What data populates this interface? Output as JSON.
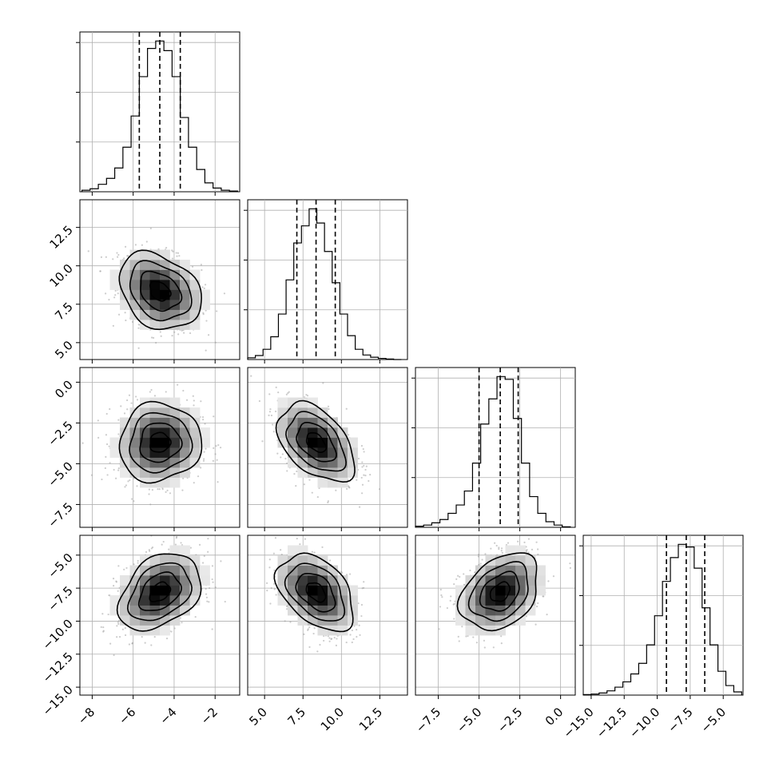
{
  "chart_data": {
    "type": "corner",
    "title": "",
    "grid": true,
    "colors": {
      "line": "#000000",
      "grid": "#b0b0b0",
      "points": "#9a9a9a",
      "background": "#ffffff"
    },
    "parameters": [
      {
        "range": [
          -8.6,
          -0.8
        ],
        "ticks": [
          "-8",
          "-6",
          "-4",
          "-2"
        ],
        "tick_values": [
          -8,
          -6,
          -4,
          -2
        ],
        "quantiles": [
          -5.7,
          -4.7,
          -3.7
        ]
      },
      {
        "range": [
          3.9,
          14.3
        ],
        "ticks": [
          "5.0",
          "7.5",
          "10.0",
          "12.5"
        ],
        "tick_values": [
          5.0,
          7.5,
          10.0,
          12.5
        ],
        "quantiles": [
          7.1,
          8.35,
          9.6
        ]
      },
      {
        "range": [
          -8.9,
          0.9
        ],
        "ticks": [
          "-7.5",
          "-5.0",
          "-2.5",
          "0.0"
        ],
        "tick_values": [
          -7.5,
          -5.0,
          -2.5,
          0.0
        ],
        "quantiles": [
          -5.0,
          -3.7,
          -2.6
        ]
      },
      {
        "range": [
          -15.6,
          -3.5
        ],
        "ticks": [
          "-15.0",
          "-12.5",
          "-10.0",
          "-7.5",
          "-5.0"
        ],
        "tick_values": [
          -15.0,
          -12.5,
          -10.0,
          -7.5,
          -5.0
        ],
        "quantiles": [
          -9.3,
          -7.8,
          -6.4
        ]
      }
    ],
    "histograms": [
      {
        "bins": [
          -8.5,
          -8.1,
          -7.7,
          -7.3,
          -6.9,
          -6.5,
          -6.1,
          -5.7,
          -5.3,
          -4.9,
          -4.5,
          -4.1,
          -3.7,
          -3.3,
          -2.9,
          -2.5,
          -2.1,
          -1.7,
          -1.3,
          -0.9
        ],
        "counts": [
          2,
          4,
          10,
          18,
          32,
          60,
          102,
          155,
          193,
          203,
          190,
          155,
          100,
          60,
          30,
          12,
          5,
          2,
          1
        ]
      },
      {
        "bins": [
          3.9,
          4.4,
          4.9,
          5.4,
          5.9,
          6.4,
          6.9,
          7.4,
          7.9,
          8.4,
          8.9,
          9.4,
          9.9,
          10.4,
          10.9,
          11.4,
          11.9,
          12.4,
          12.9,
          13.4,
          13.9
        ],
        "counts": [
          3,
          7,
          18,
          40,
          80,
          140,
          205,
          235,
          265,
          240,
          190,
          135,
          80,
          42,
          18,
          8,
          4,
          2,
          1,
          0
        ]
      },
      {
        "bins": [
          -8.9,
          -8.4,
          -7.9,
          -7.4,
          -6.9,
          -6.4,
          -5.9,
          -5.4,
          -4.9,
          -4.4,
          -3.9,
          -3.4,
          -2.9,
          -2.4,
          -1.9,
          -1.4,
          -0.9,
          -0.4,
          0.1,
          0.6
        ],
        "counts": [
          2,
          4,
          8,
          14,
          25,
          40,
          65,
          115,
          185,
          230,
          270,
          265,
          195,
          115,
          55,
          25,
          10,
          4,
          1
        ]
      },
      {
        "bins": [
          -15.6,
          -15.0,
          -14.4,
          -13.8,
          -13.2,
          -12.6,
          -12.0,
          -11.4,
          -10.8,
          -10.2,
          -9.6,
          -9.0,
          -8.4,
          -7.8,
          -7.2,
          -6.6,
          -6.0,
          -5.4,
          -4.8,
          -4.2,
          -3.6
        ],
        "counts": [
          1,
          2,
          4,
          8,
          15,
          25,
          40,
          60,
          95,
          150,
          215,
          260,
          285,
          280,
          240,
          165,
          95,
          45,
          18,
          6
        ]
      }
    ],
    "correlations": [
      [
        1,
        0,
        0,
        0
      ],
      [
        -0.28,
        1,
        0,
        0
      ],
      [
        0.05,
        -0.45,
        1,
        0
      ],
      [
        0.35,
        -0.42,
        0.33,
        1
      ]
    ],
    "contour_levels": [
      "0.5",
      "1.0",
      "1.5",
      "2.0"
    ]
  }
}
